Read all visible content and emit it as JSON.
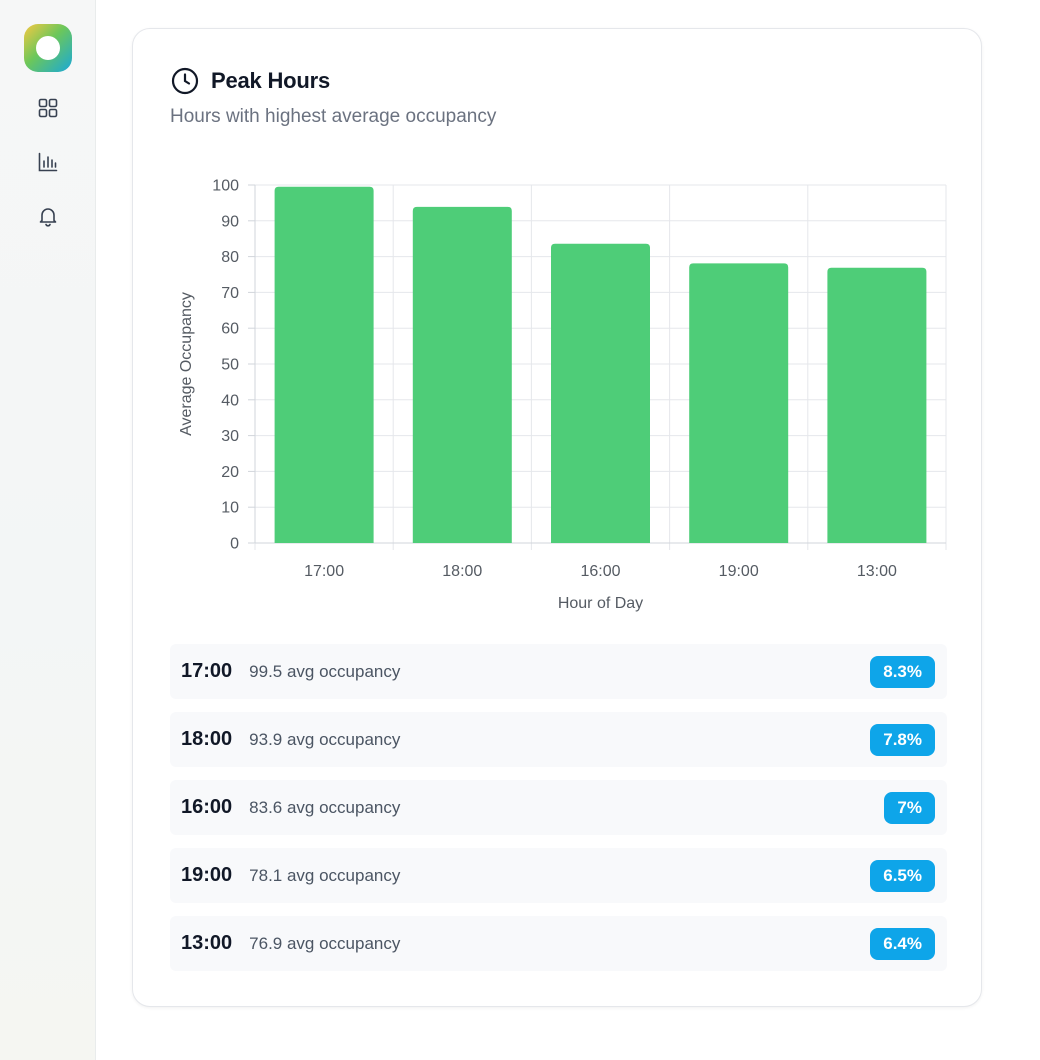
{
  "sidebar": {
    "logo": "app-logo",
    "items": [
      {
        "icon": "grid-icon",
        "name": "nav-dashboard"
      },
      {
        "icon": "bar-chart-icon",
        "name": "nav-analytics"
      },
      {
        "icon": "bell-icon",
        "name": "nav-notifications"
      }
    ]
  },
  "card": {
    "icon": "clock-icon",
    "title": "Peak Hours",
    "subtitle": "Hours with highest average occupancy"
  },
  "chart_data": {
    "type": "bar",
    "categories": [
      "17:00",
      "18:00",
      "16:00",
      "19:00",
      "13:00"
    ],
    "values": [
      99.5,
      93.9,
      83.6,
      78.1,
      76.9
    ],
    "xlabel": "Hour of Day",
    "ylabel": "Average Occupancy",
    "ylim": [
      0,
      100
    ],
    "yticks": [
      0,
      10,
      20,
      30,
      40,
      50,
      60,
      70,
      80,
      90,
      100
    ],
    "grid": true,
    "bar_color": "#4ecd78"
  },
  "rows": [
    {
      "time": "17:00",
      "occupancy": "99.5 avg occupancy",
      "share": "8.3%"
    },
    {
      "time": "18:00",
      "occupancy": "93.9 avg occupancy",
      "share": "7.8%"
    },
    {
      "time": "16:00",
      "occupancy": "83.6 avg occupancy",
      "share": "7%"
    },
    {
      "time": "19:00",
      "occupancy": "78.1 avg occupancy",
      "share": "6.5%"
    },
    {
      "time": "13:00",
      "occupancy": "76.9 avg occupancy",
      "share": "6.4%"
    }
  ],
  "colors": {
    "badge": "#0ea5e9",
    "bar": "#4ecd78",
    "title": "#111827",
    "subtitle": "#6b7280"
  }
}
